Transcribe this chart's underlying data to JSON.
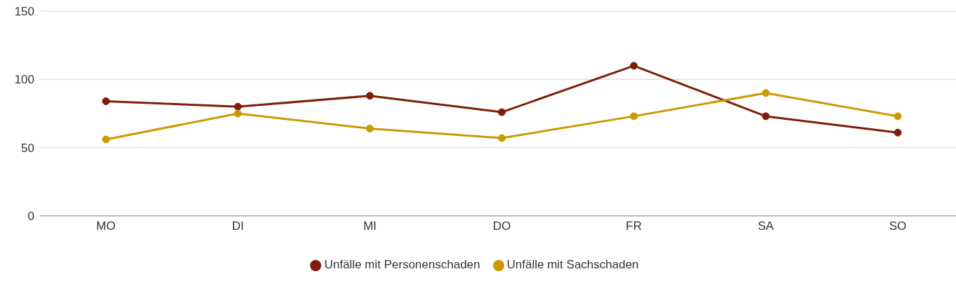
{
  "chart_data": {
    "type": "line",
    "categories": [
      "MO",
      "DI",
      "MI",
      "DO",
      "FR",
      "SA",
      "SO"
    ],
    "series": [
      {
        "name": "Unfälle mit Personenschaden",
        "color": "#7f1d0a",
        "values": [
          84,
          80,
          88,
          76,
          110,
          73,
          61
        ]
      },
      {
        "name": "Unfälle mit Sachschaden",
        "color": "#cc9900",
        "values": [
          56,
          75,
          64,
          57,
          73,
          90,
          73
        ]
      }
    ],
    "ylim": [
      0,
      150
    ],
    "yticks": [
      0,
      50,
      100,
      150
    ],
    "grid": "y",
    "legend": "bottom",
    "marker": "circle"
  }
}
